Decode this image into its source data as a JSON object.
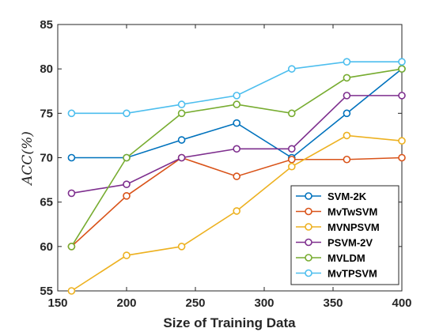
{
  "chart_data": {
    "type": "line",
    "xlabel": "Size of Training Data",
    "ylabel": "ACC(%)",
    "x": [
      160,
      200,
      240,
      280,
      320,
      360,
      400
    ],
    "xlim": [
      150,
      400
    ],
    "ylim": [
      55,
      85
    ],
    "xticks": [
      150,
      200,
      250,
      300,
      350,
      400
    ],
    "yticks": [
      55,
      60,
      65,
      70,
      75,
      80,
      85
    ],
    "grid": false,
    "legend_position": "bottom-right",
    "series": [
      {
        "name": "SVM-2K",
        "color": "#0072BD",
        "values": [
          70,
          70,
          72,
          73.9,
          70,
          75,
          80
        ]
      },
      {
        "name": "MvTwSVM",
        "color": "#D95319",
        "values": [
          60,
          65.7,
          70,
          67.9,
          69.8,
          69.8,
          70
        ]
      },
      {
        "name": "MVNPSVM",
        "color": "#EDB120",
        "values": [
          55,
          59,
          60,
          64,
          69,
          72.5,
          71.9
        ]
      },
      {
        "name": "PSVM-2V",
        "color": "#7E2F8E",
        "values": [
          66,
          67,
          70,
          71,
          71,
          77,
          77
        ]
      },
      {
        "name": "MVLDM",
        "color": "#77AC30",
        "values": [
          60,
          70,
          75,
          76,
          75,
          79,
          80
        ]
      },
      {
        "name": "MvTPSVM",
        "color": "#4DBEEE",
        "values": [
          75,
          75,
          76,
          77,
          80,
          80.8,
          80.8
        ]
      }
    ]
  }
}
